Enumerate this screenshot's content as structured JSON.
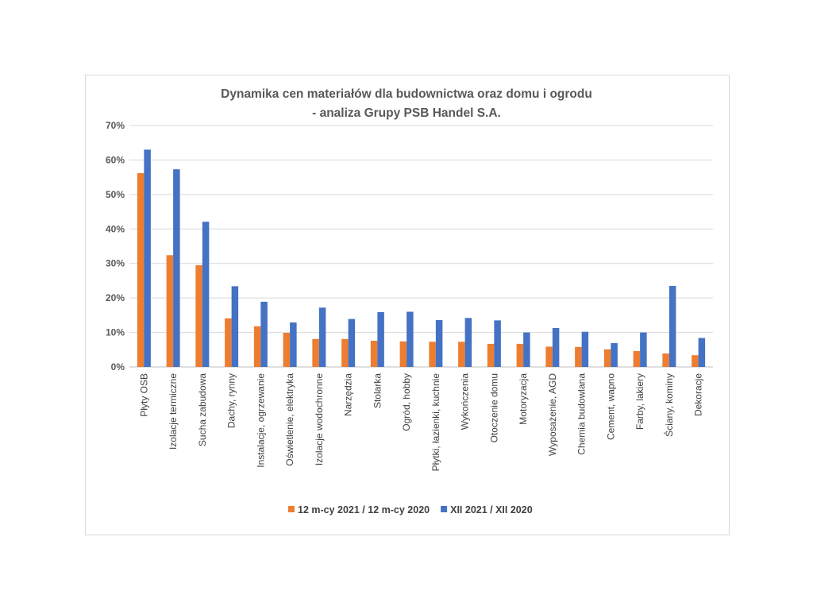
{
  "chart_data": {
    "type": "bar",
    "title_lines": [
      "Dynamika cen materiałów dla budownictwa oraz domu i  ogrodu",
      "- analiza Grupy PSB Handel S.A."
    ],
    "xlabel": "",
    "ylabel": "",
    "ylim": [
      0,
      0.7
    ],
    "yticks": [
      0,
      0.1,
      0.2,
      0.3,
      0.4,
      0.5,
      0.6,
      0.7
    ],
    "ytick_labels": [
      "0%",
      "10%",
      "20%",
      "30%",
      "40%",
      "50%",
      "60%",
      "70%"
    ],
    "grid": true,
    "legend_position": "bottom",
    "categories": [
      "Płyty OSB",
      "Izolacje termiczne",
      "Sucha zabudowa",
      "Dachy, rynny",
      "Instalacje, ogrzewanie",
      "Oświetlenie, elektryka",
      "Izolacje wodochronne",
      "Narzędzia",
      "Stolarka",
      "Ogród, hobby",
      "Płytki, łazienki, kuchnie",
      "Wykończenia",
      "Otoczenie domu",
      "Motoryzacja",
      "Wyposażenie, AGD",
      "Chemia budowlana",
      "Cement, wapno",
      "Farby, lakiery",
      "Ściany, kominy",
      "Dekoracje"
    ],
    "series": [
      {
        "name": "12 m-cy 2021 / 12 m-cy 2020",
        "color": "#ed7d31",
        "values": [
          0.562,
          0.324,
          0.295,
          0.141,
          0.118,
          0.099,
          0.081,
          0.081,
          0.076,
          0.074,
          0.073,
          0.073,
          0.067,
          0.067,
          0.059,
          0.058,
          0.051,
          0.046,
          0.039,
          0.034
        ]
      },
      {
        "name": "XII 2021 / XII 2020",
        "color": "#4472c4",
        "values": [
          0.63,
          0.573,
          0.421,
          0.234,
          0.189,
          0.129,
          0.172,
          0.139,
          0.159,
          0.16,
          0.136,
          0.142,
          0.135,
          0.1,
          0.113,
          0.102,
          0.069,
          0.1,
          0.235,
          0.084
        ]
      }
    ]
  }
}
